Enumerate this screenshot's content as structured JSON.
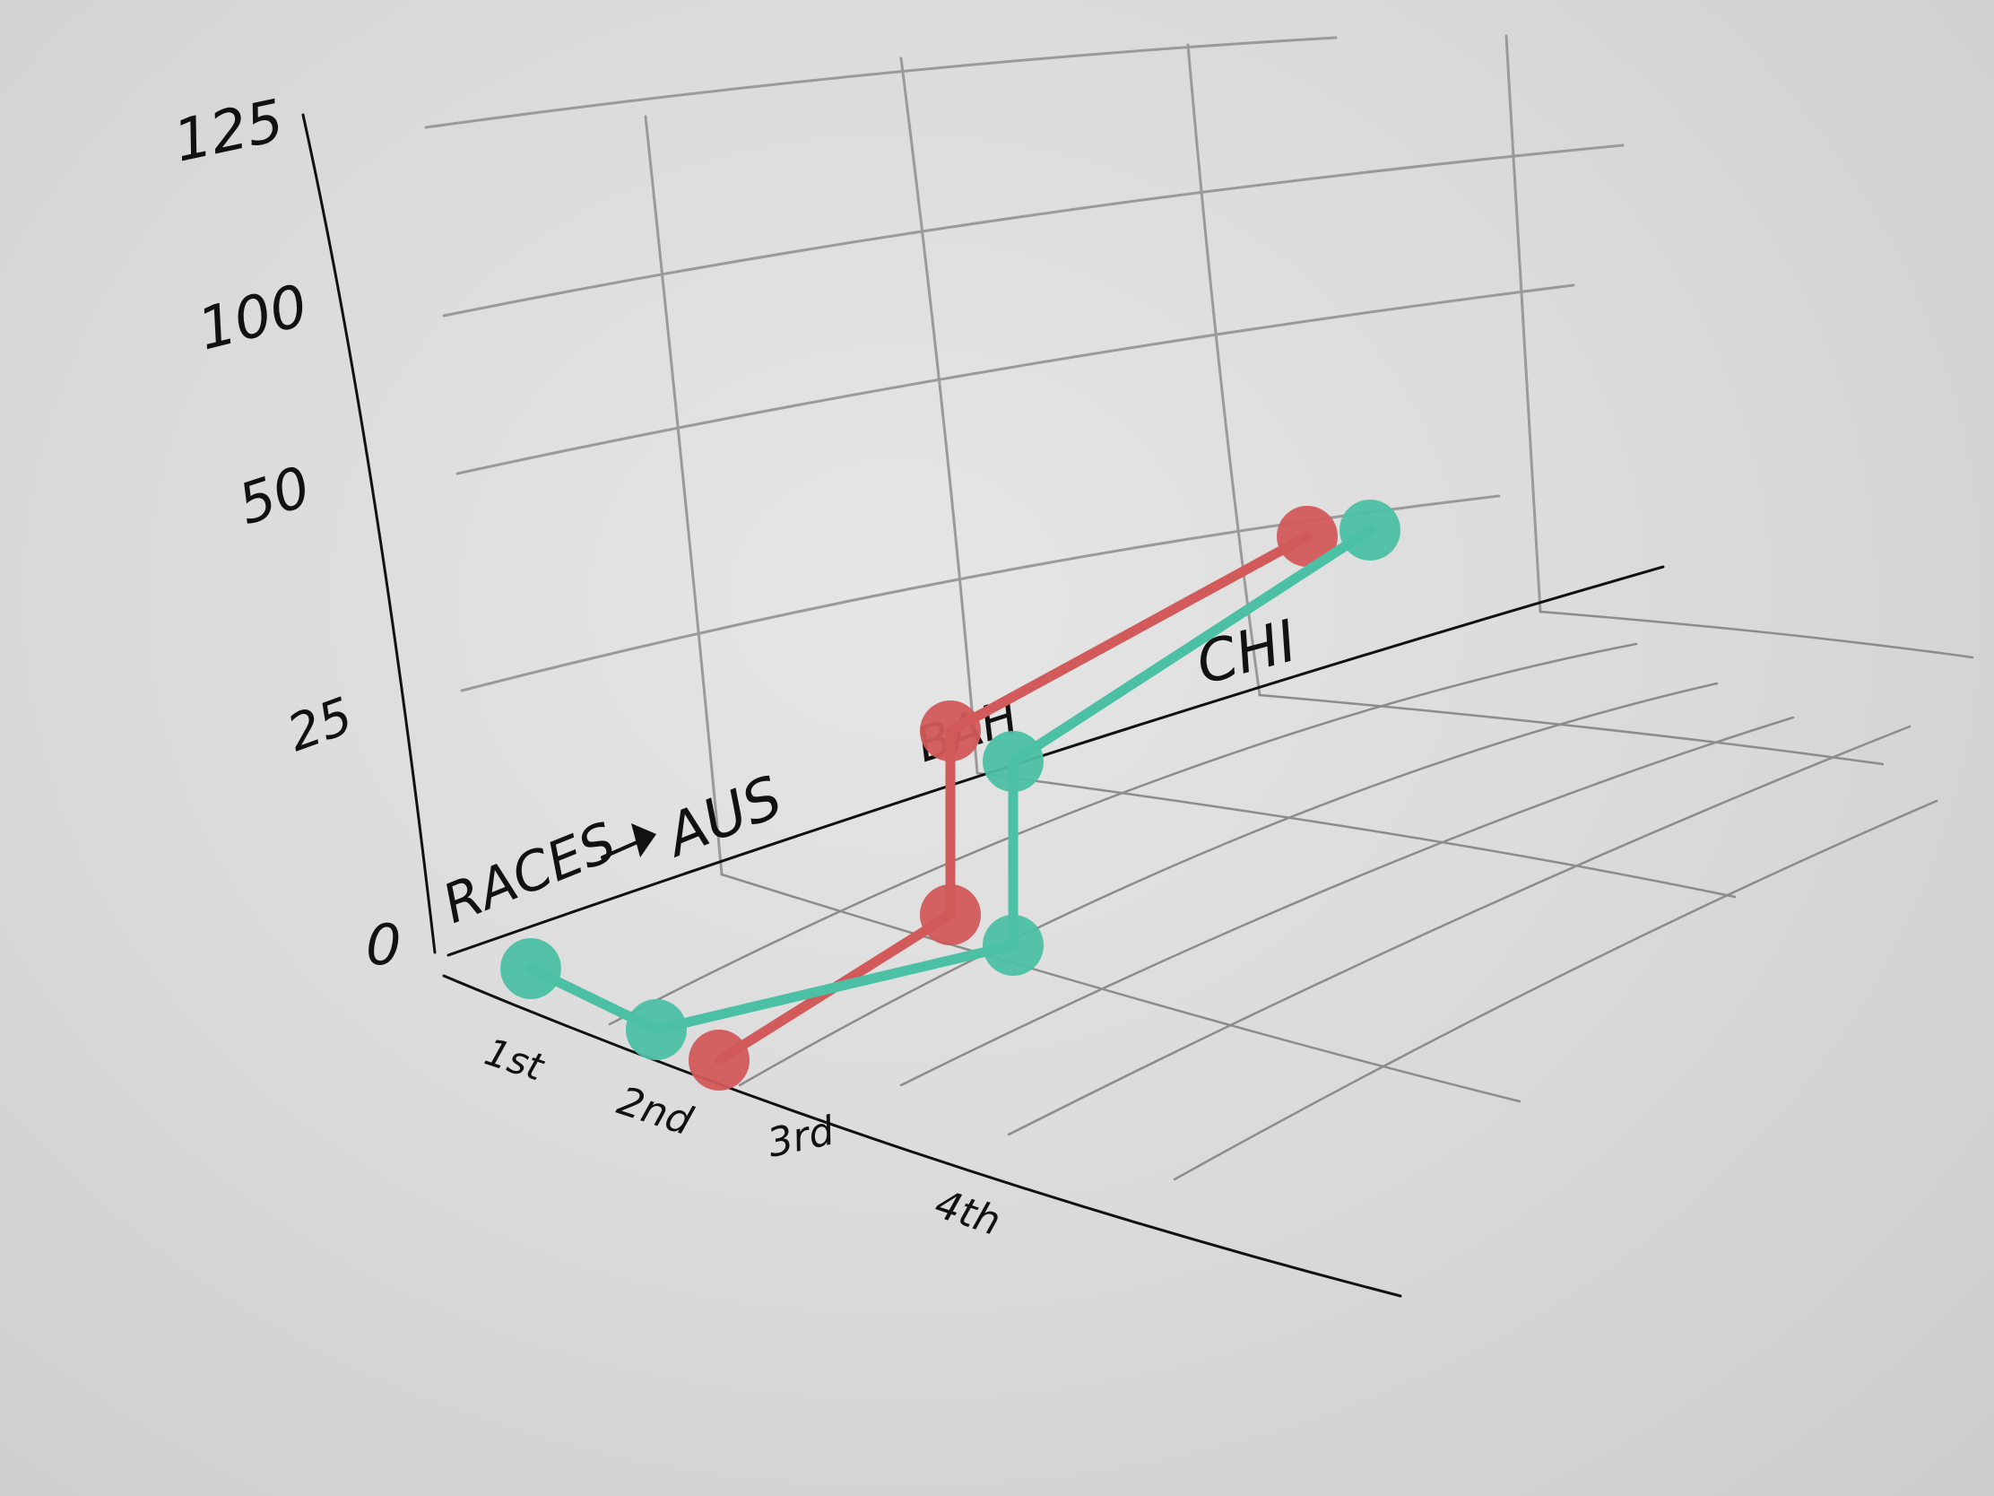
{
  "chart_data": {
    "type": "line",
    "axis_label": "RACES",
    "y_ticks": [
      "0",
      "25",
      "50",
      "100",
      "125"
    ],
    "race_labels": [
      "AUS",
      "BAH",
      "CHI"
    ],
    "position_labels": [
      "1st",
      "2nd",
      "3rd",
      "4th"
    ],
    "series": [
      {
        "color": "#d25a5a",
        "points": [
          {
            "race": "AUS",
            "position": "4th",
            "y": 0
          },
          {
            "race": "BAH",
            "position": "2nd",
            "y": 0
          },
          {
            "race": "BAH",
            "position": "2nd",
            "y": 50
          },
          {
            "race": "CHI",
            "position": "2nd",
            "y": 80
          }
        ]
      },
      {
        "color": "#4cc0a4",
        "points": [
          {
            "race": "AUS",
            "position": "1st",
            "y": 0
          },
          {
            "race": "AUS",
            "position": "3rd",
            "y": 0
          },
          {
            "race": "BAH",
            "position": "3rd",
            "y": 0
          },
          {
            "race": "BAH",
            "position": "3rd",
            "y": 50
          },
          {
            "race": "CHI",
            "position": "3rd",
            "y": 90
          }
        ]
      }
    ]
  }
}
